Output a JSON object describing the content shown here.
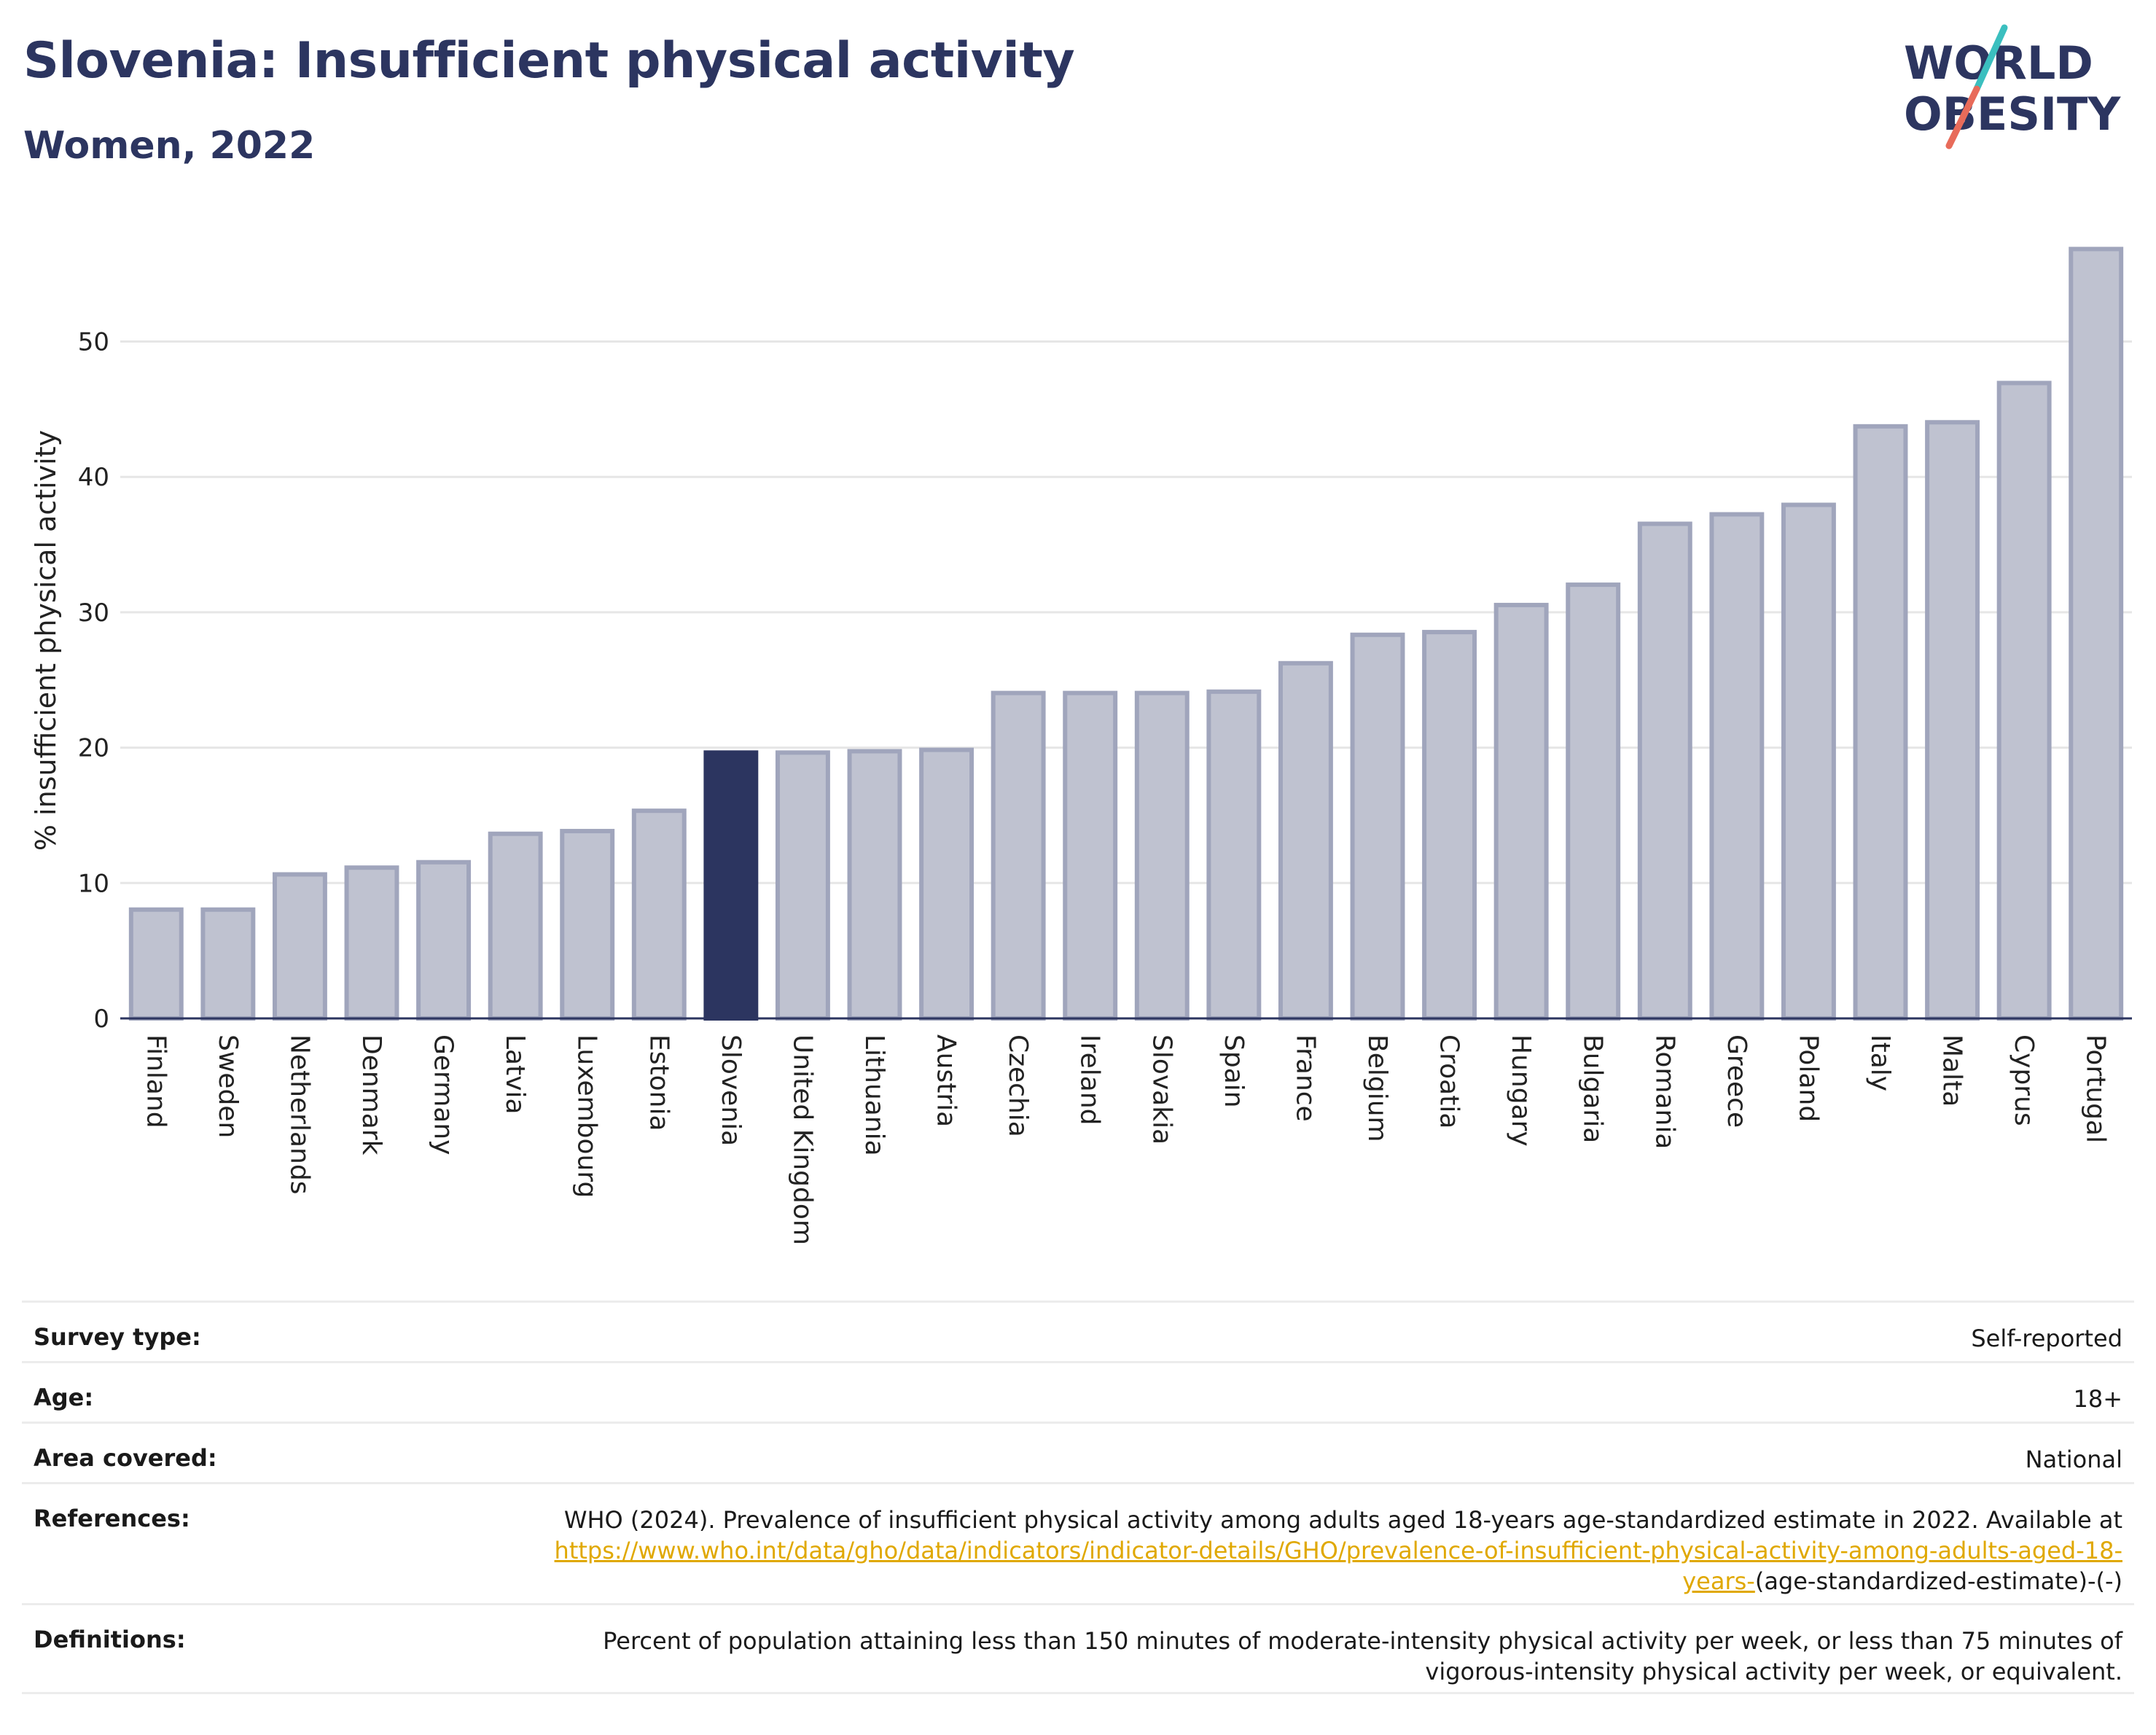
{
  "header": {
    "title": "Slovenia: Insufficient physical activity",
    "subtitle": "Women, 2022"
  },
  "logo": {
    "line1": "WORLD",
    "line2": "OBESITY",
    "colors": {
      "text": "#2c3560",
      "slash_top": "#3bbfbf",
      "slash_bottom": "#e86b5a"
    }
  },
  "colors": {
    "bar_fill": "#bfc2d0",
    "bar_stroke": "#a0a5bc",
    "highlight": "#2c3560",
    "grid": "#e6e6e6"
  },
  "chart_data": {
    "type": "bar",
    "ylabel": "% insufficient physical activity",
    "xlabel": "",
    "ylim": [
      0,
      58
    ],
    "yticks": [
      0,
      10,
      20,
      30,
      40,
      50
    ],
    "grid": true,
    "highlight": "Slovenia",
    "categories": [
      "Finland",
      "Sweden",
      "Netherlands",
      "Denmark",
      "Germany",
      "Latvia",
      "Luxembourg",
      "Estonia",
      "Slovenia",
      "United Kingdom",
      "Lithuania",
      "Austria",
      "Czechia",
      "Ireland",
      "Slovakia",
      "Spain",
      "France",
      "Belgium",
      "Croatia",
      "Hungary",
      "Bulgaria",
      "Romania",
      "Greece",
      "Poland",
      "Italy",
      "Malta",
      "Cyprus",
      "Portugal"
    ],
    "values": [
      8.2,
      8.2,
      10.8,
      11.3,
      11.7,
      13.8,
      14.0,
      15.5,
      19.8,
      19.8,
      19.9,
      20.0,
      24.2,
      24.2,
      24.2,
      24.3,
      26.4,
      28.5,
      28.7,
      30.7,
      32.2,
      36.7,
      37.4,
      38.1,
      43.9,
      44.2,
      47.1,
      57.0
    ]
  },
  "details": {
    "survey_type": {
      "label": "Survey type:",
      "value": "Self-reported"
    },
    "age": {
      "label": "Age:",
      "value": "18+"
    },
    "area": {
      "label": "Area covered:",
      "value": "National"
    },
    "references": {
      "label": "References:",
      "text": "WHO (2024). Prevalence of insufficient physical activity among adults aged 18-years age-standardized estimate in 2022. Available at",
      "link": "https://www.who.int/data/gho/data/indicators/indicator-details/GHO/prevalence-of-insufficient-physical-activity-among-adults-aged-18-years-",
      "suffix": "(age-standardized-estimate)-(-)"
    },
    "definitions": {
      "label": "Definitions:",
      "value": "Percent of population attaining less than 150 minutes of moderate-intensity physical activity per week, or less than 75 minutes of vigorous-intensity physical activity per week, or equivalent."
    }
  }
}
